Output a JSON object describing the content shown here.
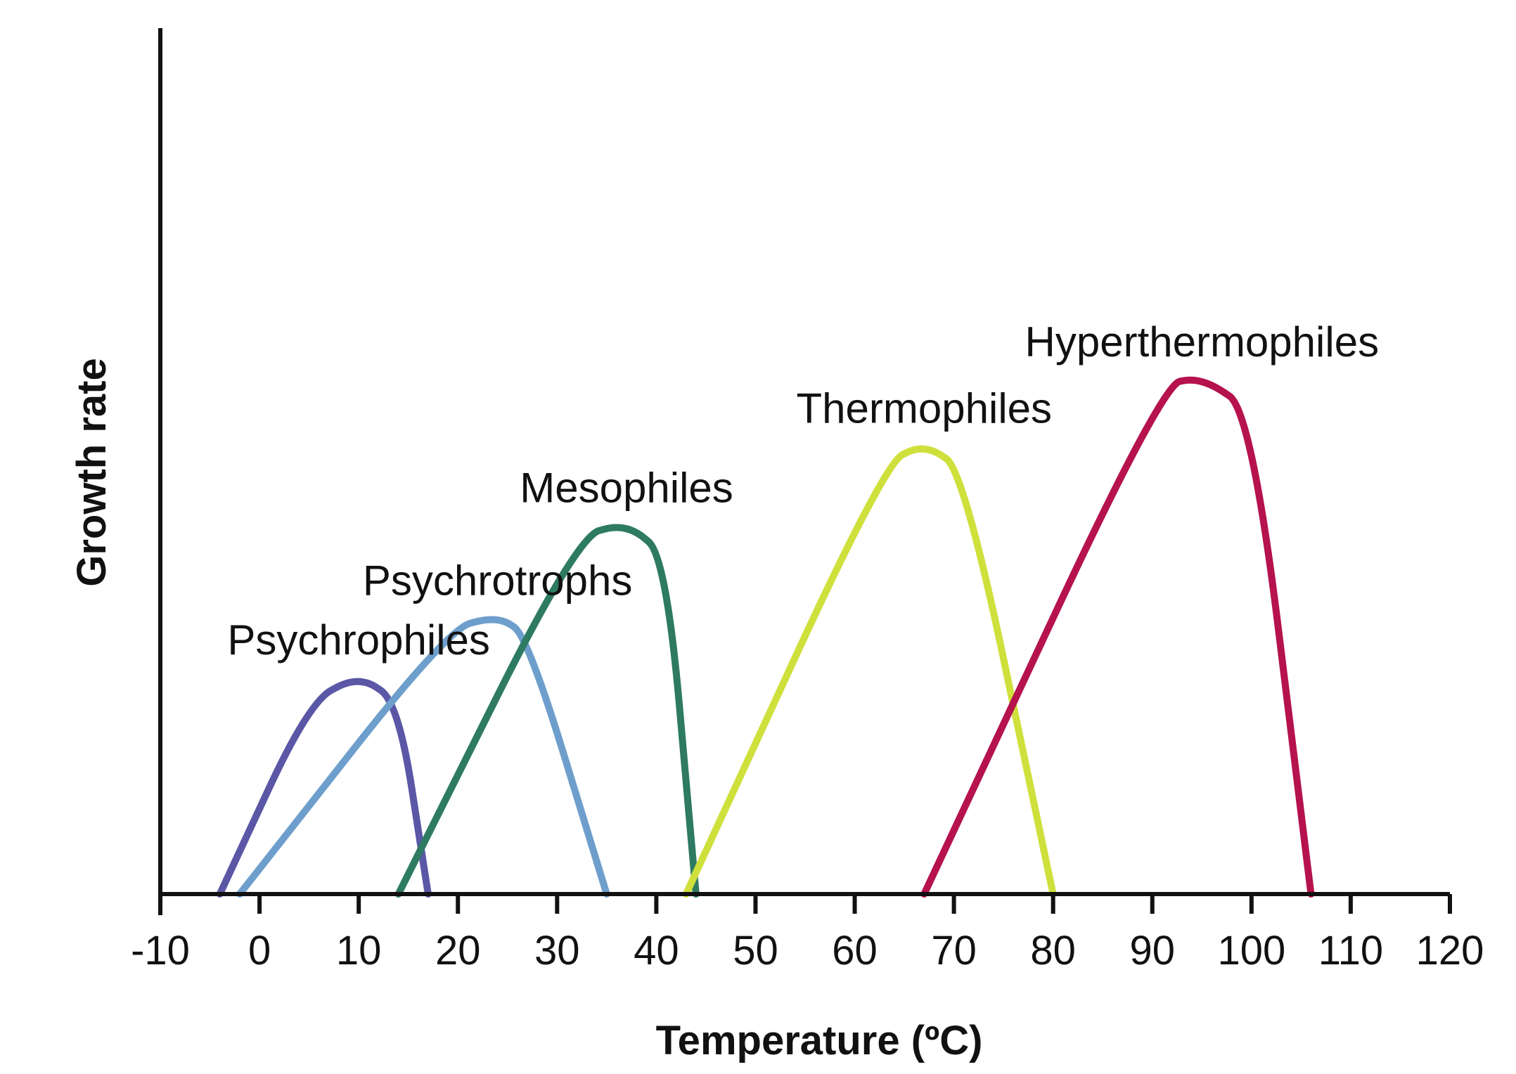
{
  "chart_data": {
    "type": "line",
    "title": "",
    "xlabel": "Temperature (ºC)",
    "ylabel": "Growth rate",
    "xlim": [
      -10,
      120
    ],
    "ylim": [
      0,
      100
    ],
    "x_ticks": [
      -10,
      0,
      10,
      20,
      30,
      40,
      50,
      60,
      70,
      80,
      90,
      100,
      110,
      120
    ],
    "x_tick_labels": [
      "-10",
      "0",
      "10",
      "20",
      "30",
      "40",
      "50",
      "60",
      "70",
      "80",
      "90",
      "100",
      "110",
      "120"
    ],
    "y_ticks_shown": false,
    "grid": false,
    "series": [
      {
        "name": "Psychrophiles",
        "color": "#5a57a6",
        "points": [
          [
            -4,
            0
          ],
          [
            5,
            29
          ],
          [
            10,
            33
          ],
          [
            14,
            29
          ],
          [
            17,
            0
          ]
        ]
      },
      {
        "name": "Psychrotrophs",
        "color": "#6e9fcc",
        "points": [
          [
            -2,
            0
          ],
          [
            19,
            40
          ],
          [
            24,
            42
          ],
          [
            27,
            39
          ],
          [
            35,
            0
          ]
        ]
      },
      {
        "name": "Mesophiles",
        "color": "#2e7a62",
        "points": [
          [
            14,
            0
          ],
          [
            32,
            54
          ],
          [
            37,
            56
          ],
          [
            41,
            51
          ],
          [
            44,
            0
          ]
        ]
      },
      {
        "name": "Thermophiles",
        "color": "#cfe03c",
        "points": [
          [
            43,
            0
          ],
          [
            63,
            65
          ],
          [
            67,
            68
          ],
          [
            71,
            64
          ],
          [
            80,
            0
          ]
        ]
      },
      {
        "name": "Hyperthermophiles",
        "color": "#b5124e",
        "points": [
          [
            67,
            0
          ],
          [
            91,
            77
          ],
          [
            95,
            78
          ],
          [
            100,
            73
          ],
          [
            106,
            0
          ]
        ]
      }
    ]
  }
}
